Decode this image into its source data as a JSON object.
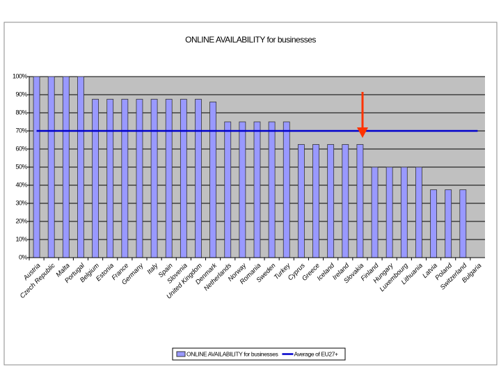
{
  "chart_data": {
    "type": "bar",
    "title": "ONLINE AVAILABILITY for businesses",
    "categories": [
      "Austria",
      "Czech Republic",
      "Malta",
      "Portugal",
      "Belgium",
      "Estonia",
      "France",
      "Germany",
      "Italy",
      "Spain",
      "Slovenia",
      "United Kingdom",
      "Denmark",
      "Netherlands",
      "Norway",
      "Romania",
      "Sweden",
      "Turkey",
      "Cyprus",
      "Greece",
      "Iceland",
      "Ireland",
      "Slovakia",
      "Finland",
      "Hungary",
      "Luxembourg",
      "Lithuania",
      "Latvia",
      "Poland",
      "Switzerland",
      "Bulgaria"
    ],
    "series": [
      {
        "name": "ONLINE AVAILABILITY for businesses",
        "type": "bar",
        "color": "#9999ff",
        "values": [
          100,
          100,
          100,
          100,
          87.5,
          87.5,
          87.5,
          87.5,
          87.5,
          87.5,
          87.5,
          87.5,
          86,
          75,
          75,
          75,
          75,
          75,
          62.5,
          62.5,
          62.5,
          62.5,
          62.5,
          50,
          50,
          50,
          50,
          37.5,
          37.5,
          37.5,
          0
        ]
      },
      {
        "name": "Average of EU27+",
        "type": "line",
        "color": "#0000cc",
        "values": [
          70,
          70,
          70,
          70,
          70,
          70,
          70,
          70,
          70,
          70,
          70,
          70,
          70,
          70,
          70,
          70,
          70,
          70,
          70,
          70,
          70,
          70,
          70,
          70,
          70,
          70,
          70,
          70,
          70,
          70,
          70
        ]
      }
    ],
    "ylim": [
      0,
      100
    ],
    "yticks": [
      {
        "value": 0,
        "label": "0%"
      },
      {
        "value": 10,
        "label": "10%"
      },
      {
        "value": 20,
        "label": "20%"
      },
      {
        "value": 30,
        "label": "30%"
      },
      {
        "value": 40,
        "label": "40%"
      },
      {
        "value": 50,
        "label": "50%"
      },
      {
        "value": 60,
        "label": "60%"
      },
      {
        "value": 70,
        "label": "70%"
      },
      {
        "value": 80,
        "label": "80%"
      },
      {
        "value": 90,
        "label": "90%"
      },
      {
        "value": 100,
        "label": "100%"
      }
    ],
    "grid": true,
    "legend": "bottom"
  }
}
